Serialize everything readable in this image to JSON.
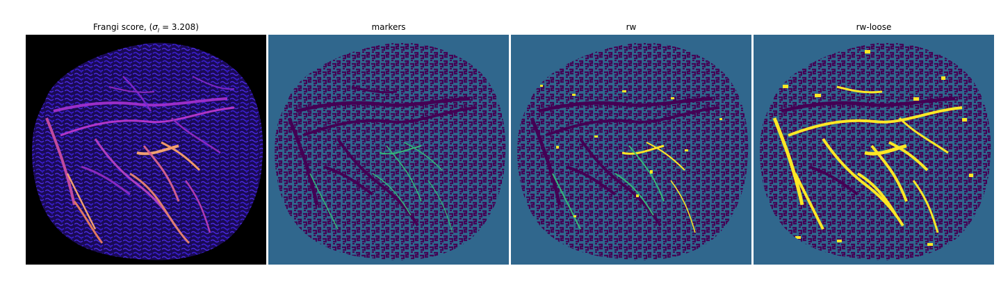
{
  "figure": {
    "panels": [
      {
        "title": "Frangi score, (σᵢ = 3.208)",
        "colormap": "magma"
      },
      {
        "title": "markers",
        "colormap": "viridis"
      },
      {
        "title": "rw",
        "colormap": "viridis"
      },
      {
        "title": "rw-loose",
        "colormap": "viridis"
      }
    ],
    "colors": {
      "black_background": "#000000",
      "teal_background": "#30678d",
      "dark_purple": "#440154",
      "blue_purple": "#3a1fd0",
      "magenta": "#a02bd0",
      "orange": "#f0a070",
      "green_marker": "#35b779",
      "yellow": "#fde725"
    }
  }
}
